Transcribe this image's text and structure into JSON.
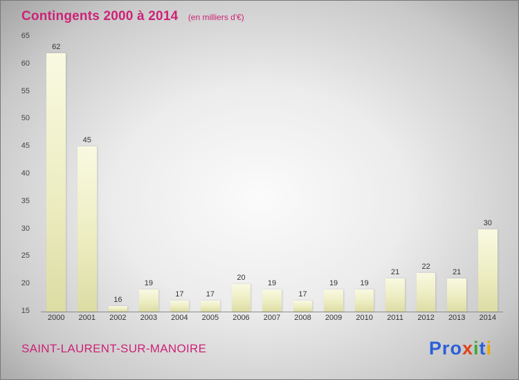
{
  "header": {
    "title": "Contingents 2000 à 2014",
    "subtitle": "(en milliers d'€)"
  },
  "chart_data": {
    "type": "bar",
    "title": "Contingents 2000 à 2014",
    "subtitle": "(en milliers d'€)",
    "categories": [
      "2000",
      "2001",
      "2002",
      "2003",
      "2004",
      "2005",
      "2006",
      "2007",
      "2008",
      "2009",
      "2010",
      "2011",
      "2012",
      "2013",
      "2014"
    ],
    "values": [
      62,
      45,
      16,
      19,
      17,
      17,
      20,
      19,
      17,
      19,
      19,
      21,
      22,
      21,
      30
    ],
    "xlabel": "",
    "ylabel": "",
    "ylim": [
      15,
      65
    ],
    "ytick_step": 5,
    "grid": false,
    "legend": false,
    "bar_color_top": "#f9f9e2",
    "bar_color_bottom": "#dcdca4",
    "value_labels": true
  },
  "footer": {
    "location": "SAINT-LAURENT-SUR-MANOIRE",
    "logo_letters": [
      {
        "ch": "P",
        "color": "#2b5fd9"
      },
      {
        "ch": "r",
        "color": "#2b5fd9"
      },
      {
        "ch": "o",
        "color": "#2b5fd9"
      },
      {
        "ch": "x",
        "color": "#e0421b"
      },
      {
        "ch": "i",
        "color": "#3aaa35"
      },
      {
        "ch": "t",
        "color": "#2b5fd9"
      },
      {
        "ch": "i",
        "color": "#f0a500"
      }
    ]
  },
  "colors": {
    "title": "#cc2277",
    "location": "#cc2277",
    "axis_text": "#444444"
  }
}
